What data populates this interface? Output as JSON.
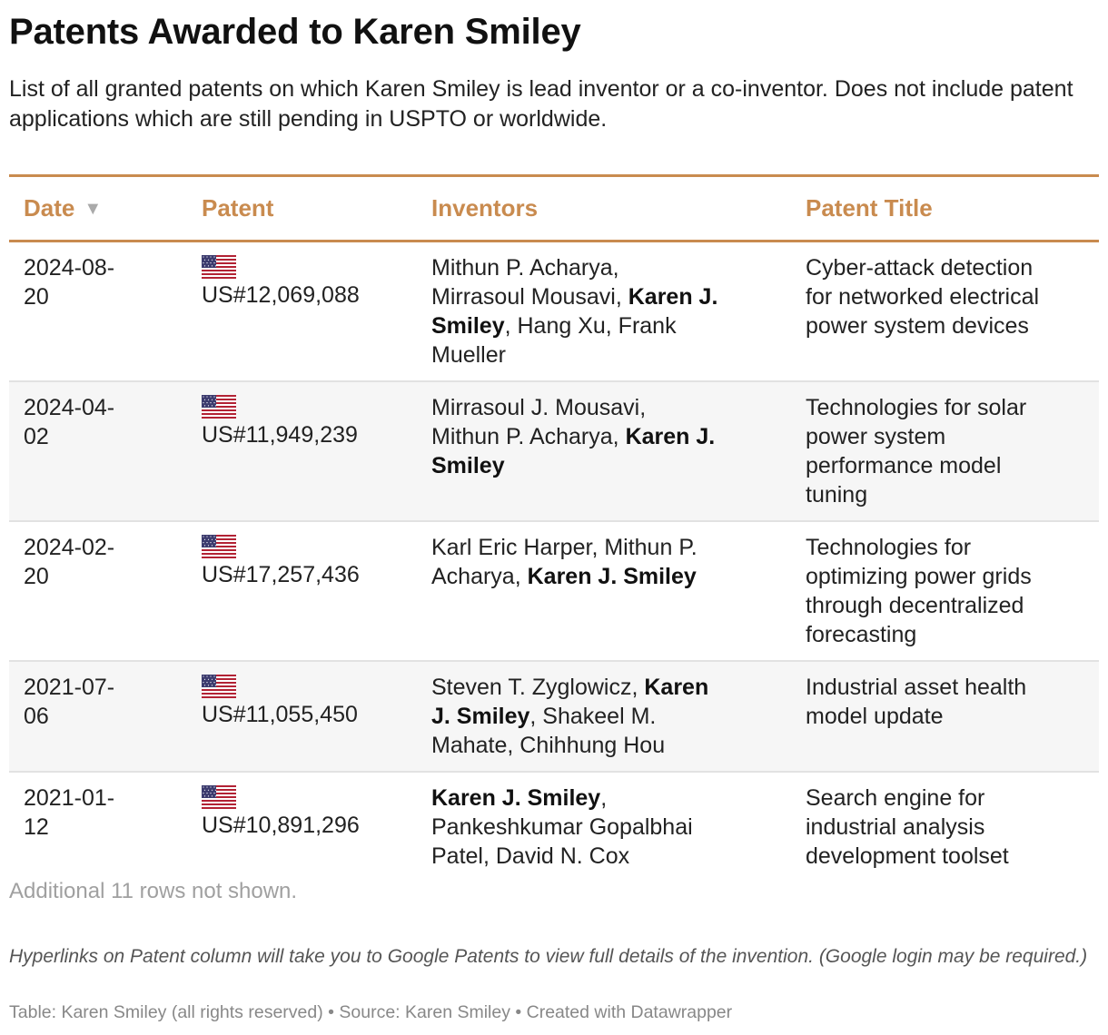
{
  "title": "Patents Awarded to Karen Smiley",
  "subtitle": "List of all granted patents on which Karen Smiley is lead inventor or a co-inventor. Does not include patent applications which are still pending in USPTO or worldwide.",
  "chart_data": {
    "type": "table",
    "columns": [
      "Date",
      "Patent",
      "Inventors",
      "Patent Title"
    ],
    "sort": {
      "column": "Date",
      "direction": "descending",
      "indicator": "▼"
    },
    "highlight_name": "Karen J. Smiley",
    "rows": [
      {
        "date": [
          "2024-08-",
          "20"
        ],
        "flag": "us-flag-icon",
        "patent": "US#12,069,088",
        "inventors": [
          {
            "text": "Mithun P. Acharya,"
          },
          {
            "text": "Mirrasoul Mousavi, "
          },
          {
            "text": "Karen J.",
            "bold": true
          },
          {
            "text": "Smiley",
            "bold": true
          },
          {
            "text": ", Hang Xu, Frank"
          },
          {
            "text": "Mueller"
          }
        ],
        "inventor_lines": [
          [
            0
          ],
          [
            1,
            2
          ],
          [
            3,
            4
          ],
          [
            5
          ]
        ],
        "title": [
          "Cyber-attack detection",
          "for networked electrical",
          "power system devices"
        ]
      },
      {
        "date": [
          "2024-04-",
          "02"
        ],
        "flag": "us-flag-icon",
        "patent": "US#11,949,239",
        "inventors": [
          {
            "text": "Mirrasoul J. Mousavi,"
          },
          {
            "text": "Mithun P. Acharya, "
          },
          {
            "text": "Karen J.",
            "bold": true
          },
          {
            "text": "Smiley",
            "bold": true
          }
        ],
        "inventor_lines": [
          [
            0
          ],
          [
            1,
            2
          ],
          [
            3
          ]
        ],
        "title": [
          "Technologies for solar",
          "power system",
          "performance model",
          "tuning"
        ]
      },
      {
        "date": [
          "2024-02-",
          "20"
        ],
        "flag": "us-flag-icon",
        "patent": "US#17,257,436",
        "inventors": [
          {
            "text": "Karl Eric Harper, Mithun P."
          },
          {
            "text": "Acharya, "
          },
          {
            "text": "Karen J. Smiley",
            "bold": true
          }
        ],
        "inventor_lines": [
          [
            0
          ],
          [
            1,
            2
          ]
        ],
        "title": [
          "Technologies for",
          "optimizing power grids",
          "through decentralized",
          "forecasting"
        ]
      },
      {
        "date": [
          "2021-07-",
          "06"
        ],
        "flag": "us-flag-icon",
        "patent": "US#11,055,450",
        "inventors": [
          {
            "text": "Steven T. Zyglowicz, "
          },
          {
            "text": "Karen",
            "bold": true
          },
          {
            "text": "J. Smiley",
            "bold": true
          },
          {
            "text": ", Shakeel M."
          },
          {
            "text": "Mahate, Chihhung Hou"
          }
        ],
        "inventor_lines": [
          [
            0,
            1
          ],
          [
            2,
            3
          ],
          [
            4
          ]
        ],
        "title": [
          "Industrial asset health",
          "model update"
        ]
      },
      {
        "date": [
          "2021-01-",
          "12"
        ],
        "flag": "us-flag-icon",
        "patent": "US#10,891,296",
        "inventors": [
          {
            "text": "Karen J. Smiley",
            "bold": true
          },
          {
            "text": ","
          },
          {
            "text": "Pankeshkumar Gopalbhai"
          },
          {
            "text": "Patel, David N. Cox"
          }
        ],
        "inventor_lines": [
          [
            0,
            1
          ],
          [
            2
          ],
          [
            3
          ]
        ],
        "title": [
          "Search engine for",
          "industrial analysis",
          "development toolset"
        ]
      }
    ]
  },
  "more_rows": "Additional 11 rows not shown.",
  "note": "Hyperlinks on Patent column will take you to Google Patents to view full details of the invention. (Google login may be required.)",
  "footer": "Table: Karen Smiley (all rights reserved) • Source: Karen Smiley • Created with Datawrapper",
  "colors": {
    "accent": "#c98b4f",
    "row_alt": "#f6f6f6",
    "rule": "#e2e2e2",
    "muted": "#a0a0a0"
  }
}
